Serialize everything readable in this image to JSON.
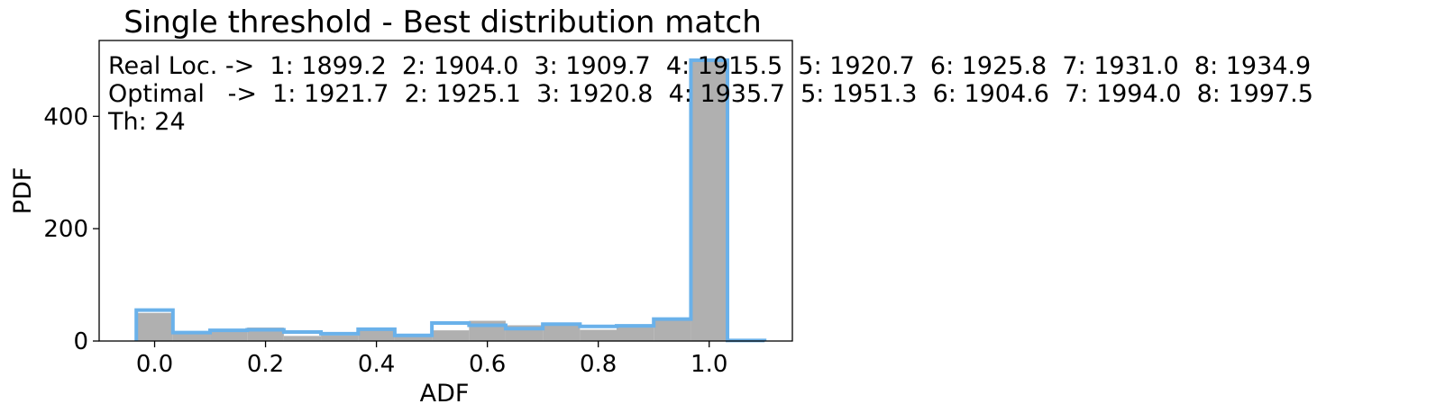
{
  "chart_data": {
    "type": "bar",
    "title": "Single threshold - Best distribution match",
    "xlabel": "ADF",
    "ylabel": "PDF",
    "xlim": [
      -0.1,
      1.15
    ],
    "ylim": [
      0,
      535
    ],
    "xticks": [
      "0.0",
      "0.2",
      "0.4",
      "0.6",
      "0.8",
      "1.0"
    ],
    "yticks": [
      "0",
      "200",
      "400"
    ],
    "grid": false,
    "annotations": [
      "Real Loc. ->  1: 1899.2  2: 1904.0  3: 1909.7  4: 1915.5  5: 1920.7  6: 1925.8  7: 1931.0  8: 1934.9",
      "Optimal   ->  1: 1921.7  2: 1925.1  3: 1920.8  4: 1935.7  5: 1951.3  6: 1904.6  7: 1994.0  8: 1997.5",
      "Th: 24"
    ],
    "series": [
      {
        "kind": "filled histogram",
        "color": "#b0b0b0",
        "bins": [
          {
            "x0": -0.033,
            "x1": 0.033,
            "y": 50
          },
          {
            "x0": 0.033,
            "x1": 0.1,
            "y": 14
          },
          {
            "x0": 0.1,
            "x1": 0.167,
            "y": 20
          },
          {
            "x0": 0.167,
            "x1": 0.233,
            "y": 24
          },
          {
            "x0": 0.233,
            "x1": 0.3,
            "y": 9
          },
          {
            "x0": 0.3,
            "x1": 0.367,
            "y": 10
          },
          {
            "x0": 0.367,
            "x1": 0.433,
            "y": 20
          },
          {
            "x0": 0.433,
            "x1": 0.5,
            "y": 10
          },
          {
            "x0": 0.5,
            "x1": 0.567,
            "y": 19
          },
          {
            "x0": 0.567,
            "x1": 0.633,
            "y": 36
          },
          {
            "x0": 0.633,
            "x1": 0.7,
            "y": 28
          },
          {
            "x0": 0.7,
            "x1": 0.767,
            "y": 30
          },
          {
            "x0": 0.767,
            "x1": 0.833,
            "y": 20
          },
          {
            "x0": 0.833,
            "x1": 0.9,
            "y": 25
          },
          {
            "x0": 0.9,
            "x1": 0.967,
            "y": 38
          },
          {
            "x0": 0.967,
            "x1": 1.033,
            "y": 500
          }
        ]
      },
      {
        "kind": "step histogram",
        "color": "#6ab1ea",
        "bins": [
          {
            "x0": -0.033,
            "x1": 0.033,
            "y": 55
          },
          {
            "x0": 0.033,
            "x1": 0.1,
            "y": 15
          },
          {
            "x0": 0.1,
            "x1": 0.167,
            "y": 19
          },
          {
            "x0": 0.167,
            "x1": 0.233,
            "y": 20
          },
          {
            "x0": 0.233,
            "x1": 0.3,
            "y": 16
          },
          {
            "x0": 0.3,
            "x1": 0.367,
            "y": 13
          },
          {
            "x0": 0.367,
            "x1": 0.433,
            "y": 21
          },
          {
            "x0": 0.433,
            "x1": 0.5,
            "y": 10
          },
          {
            "x0": 0.5,
            "x1": 0.567,
            "y": 32
          },
          {
            "x0": 0.567,
            "x1": 0.633,
            "y": 28
          },
          {
            "x0": 0.633,
            "x1": 0.7,
            "y": 22
          },
          {
            "x0": 0.7,
            "x1": 0.767,
            "y": 30
          },
          {
            "x0": 0.767,
            "x1": 0.833,
            "y": 26
          },
          {
            "x0": 0.833,
            "x1": 0.9,
            "y": 27
          },
          {
            "x0": 0.9,
            "x1": 0.967,
            "y": 39
          },
          {
            "x0": 0.967,
            "x1": 1.033,
            "y": 500
          },
          {
            "x0": 1.033,
            "x1": 1.1,
            "y": 1
          }
        ]
      }
    ]
  }
}
